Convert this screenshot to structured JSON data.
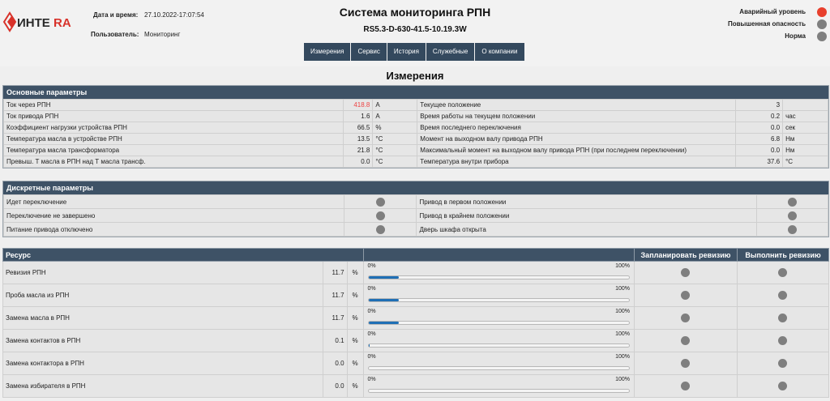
{
  "header": {
    "logo_text": "ИНТЕRA",
    "datetime_label": "Дата и время:",
    "datetime_value": "27.10.2022-17:07:54",
    "user_label": "Пользователь:",
    "user_value": "Мониторинг",
    "title": "Система мониторинга РПН",
    "device": "RS5.3-D-630-41.5-10.19.3W"
  },
  "legend": [
    {
      "label": "Аварийный уровень",
      "color": "#e8402d"
    },
    {
      "label": "Повышенная опасность",
      "color": "#7f7f7f"
    },
    {
      "label": "Норма",
      "color": "#7f7f7f"
    }
  ],
  "nav": [
    "Измерения",
    "Сервис",
    "История",
    "Служебные",
    "О компании"
  ],
  "page_title": "Измерения",
  "basic": {
    "title": "Основные параметры",
    "rows": [
      {
        "l_name": "Ток через РПН",
        "l_val": "418.8",
        "l_unit": "A",
        "l_alarm": true,
        "r_name": "Текущее положение",
        "r_val": "3",
        "r_unit": ""
      },
      {
        "l_name": "Ток привода РПН",
        "l_val": "1.6",
        "l_unit": "A",
        "r_name": "Время работы на текущем положении",
        "r_val": "0.2",
        "r_unit": "час"
      },
      {
        "l_name": "Коэффициент нагрузки устройства РПН",
        "l_val": "66.5",
        "l_unit": "%",
        "r_name": "Время последнего переключения",
        "r_val": "0.0",
        "r_unit": "сек"
      },
      {
        "l_name": "Температура масла в устройстве РПН",
        "l_val": "13.5",
        "l_unit": "°C",
        "r_name": "Момент на выходном валу привода РПН",
        "r_val": "6.8",
        "r_unit": "Нм"
      },
      {
        "l_name": "Температура масла трансформатора",
        "l_val": "21.8",
        "l_unit": "°C",
        "r_name": "Максимальный момент на выходном валу привода РПН (при последнем переключении)",
        "r_val": "0.0",
        "r_unit": "Нм"
      },
      {
        "l_name": "Превыш. Т масла в РПН над Т масла трансф.",
        "l_val": "0.0",
        "l_unit": "°C",
        "r_name": "Температура внутри прибора",
        "r_val": "37.6",
        "r_unit": "°C"
      }
    ]
  },
  "discrete": {
    "title": "Дискретные параметры",
    "rows": [
      {
        "l": "Идет переключение",
        "r": "Привод в первом положении"
      },
      {
        "l": "Переключение не завершено",
        "r": "Привод в крайнем положении"
      },
      {
        "l": "Питание привода отключено",
        "r": "Дверь шкафа открыта"
      }
    ]
  },
  "resource": {
    "title": "Ресурс",
    "col_plan": "Запланировать ревизию",
    "col_exec": "Выполнить ревизию",
    "bar_min": "0%",
    "bar_max": "100%",
    "rows": [
      {
        "name": "Ревизия РПН",
        "val": "11.7",
        "unit": "%",
        "pct": 11.7
      },
      {
        "name": "Проба масла из РПН",
        "val": "11.7",
        "unit": "%",
        "pct": 11.7
      },
      {
        "name": "Замена масла в РПН",
        "val": "11.7",
        "unit": "%",
        "pct": 11.7
      },
      {
        "name": "Замена контактов в РПН",
        "val": "0.1",
        "unit": "%",
        "pct": 0.1
      },
      {
        "name": "Замена контактора в РПН",
        "val": "0.0",
        "unit": "%",
        "pct": 0
      },
      {
        "name": "Замена избирателя в РПН",
        "val": "0.0",
        "unit": "%",
        "pct": 0
      }
    ]
  }
}
